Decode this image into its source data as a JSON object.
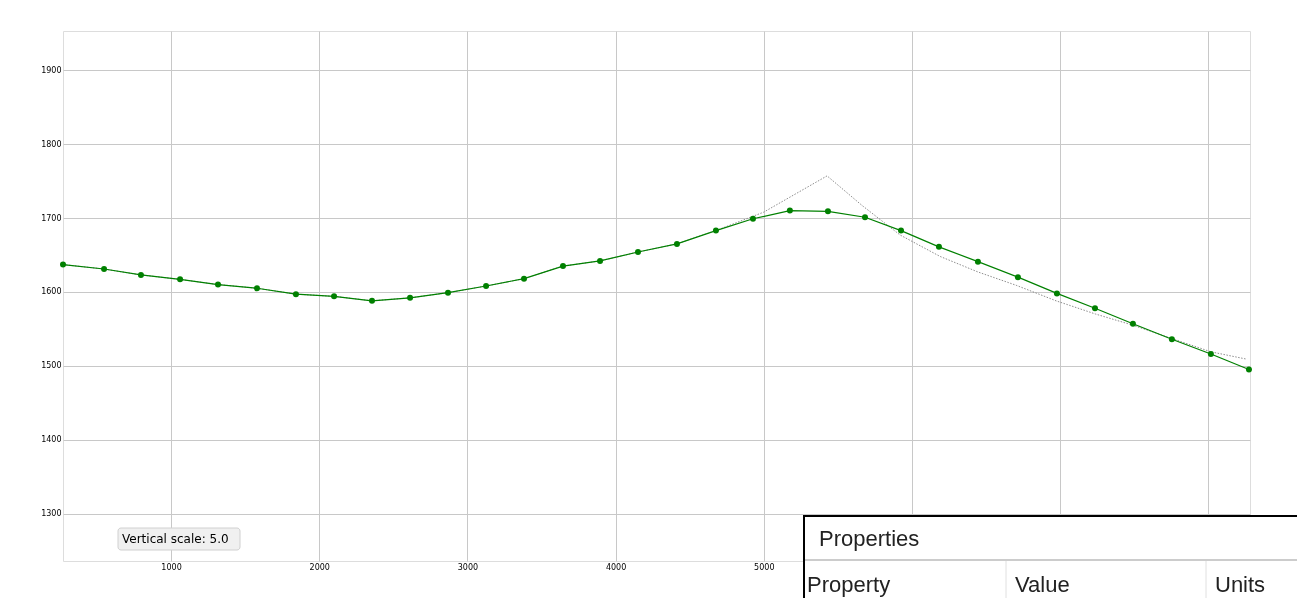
{
  "chart_data": {
    "type": "line",
    "x": [
      271,
      548,
      797,
      1061,
      1317,
      1580,
      1843,
      2100,
      2356,
      2613,
      2869,
      3126,
      3382,
      3645,
      3895,
      4151,
      4414,
      4677,
      4927,
      5176,
      5433,
      5683,
      5926,
      6182,
      6445,
      6715,
      6978,
      7235,
      7491,
      7754,
      8017,
      8274
    ],
    "series": [
      {
        "color": "#808080",
        "line_style": "dotted",
        "marker": "none",
        "x": [
          271,
          548,
          797,
          1061,
          1317,
          1580,
          1843,
          2100,
          2356,
          2613,
          2869,
          3126,
          3382,
          3645,
          3895,
          4151,
          4414,
          4677,
          5000,
          5427,
          5663,
          5920,
          6190,
          6445,
          6703,
          6972,
          7240,
          7491,
          7754,
          8017,
          8260
        ],
        "values": [
          1637,
          1631,
          1623,
          1617,
          1610,
          1605,
          1597,
          1594,
          1588,
          1592,
          1599,
          1608,
          1618,
          1635,
          1642,
          1654,
          1665,
          1683,
          1708,
          1757,
          1717,
          1677,
          1648,
          1627,
          1609,
          1588,
          1570,
          1555,
          1537,
          1519,
          1509
        ]
      },
      {
        "color": "#008000",
        "line_style": "solid",
        "marker": "circle",
        "values": [
          1637,
          1631,
          1623,
          1617,
          1610,
          1605,
          1597,
          1594,
          1588,
          1592,
          1599,
          1608,
          1618,
          1635,
          1642,
          1654,
          1665,
          1683,
          1699,
          1710,
          1709,
          1701,
          1683,
          1661,
          1641,
          1620,
          1598,
          1578,
          1557,
          1536,
          1516,
          1495
        ]
      }
    ],
    "xlim": [
      271,
      8281
    ],
    "ylim": [
      1236,
      1953
    ],
    "xticks": [
      1000,
      2000,
      3000,
      4000,
      5000,
      {
        "value": 6000,
        "label": null
      },
      {
        "value": 7000,
        "label": null
      },
      {
        "value": 8000,
        "label": null
      }
    ],
    "yticks": [
      1300,
      1400,
      1500,
      1600,
      1700,
      1800,
      1900
    ],
    "grid": true,
    "annotations": [
      "Vertical scale: 5.0",
      "Properties",
      "Property",
      "Value",
      "Units"
    ]
  }
}
